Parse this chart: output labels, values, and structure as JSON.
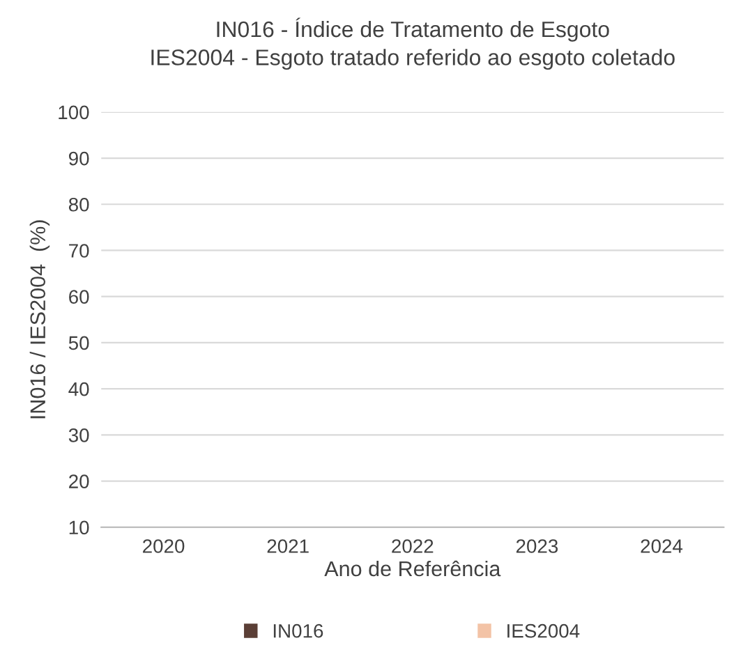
{
  "chart_data": {
    "type": "bar",
    "title": "IN016 - Índice de Tratamento de Esgoto",
    "subtitle": "IES2004 - Esgoto tratado referido ao esgoto coletado",
    "xlabel": "Ano de Referência",
    "ylabel": "IN016 / IES2004  (%)",
    "categories": [
      "2020",
      "2021",
      "2022",
      "2023",
      "2024"
    ],
    "series": [
      {
        "name": "IN016",
        "color": "#5b3f36",
        "values": [
          null,
          null,
          null,
          null,
          null
        ]
      },
      {
        "name": "IES2004",
        "color": "#f3c3a6",
        "values": [
          null,
          null,
          null,
          null,
          null
        ]
      }
    ],
    "ylim": [
      10,
      100
    ],
    "yticks": [
      10,
      20,
      30,
      40,
      50,
      60,
      70,
      80,
      90,
      100
    ],
    "grid": "y",
    "legend": "bottom"
  }
}
